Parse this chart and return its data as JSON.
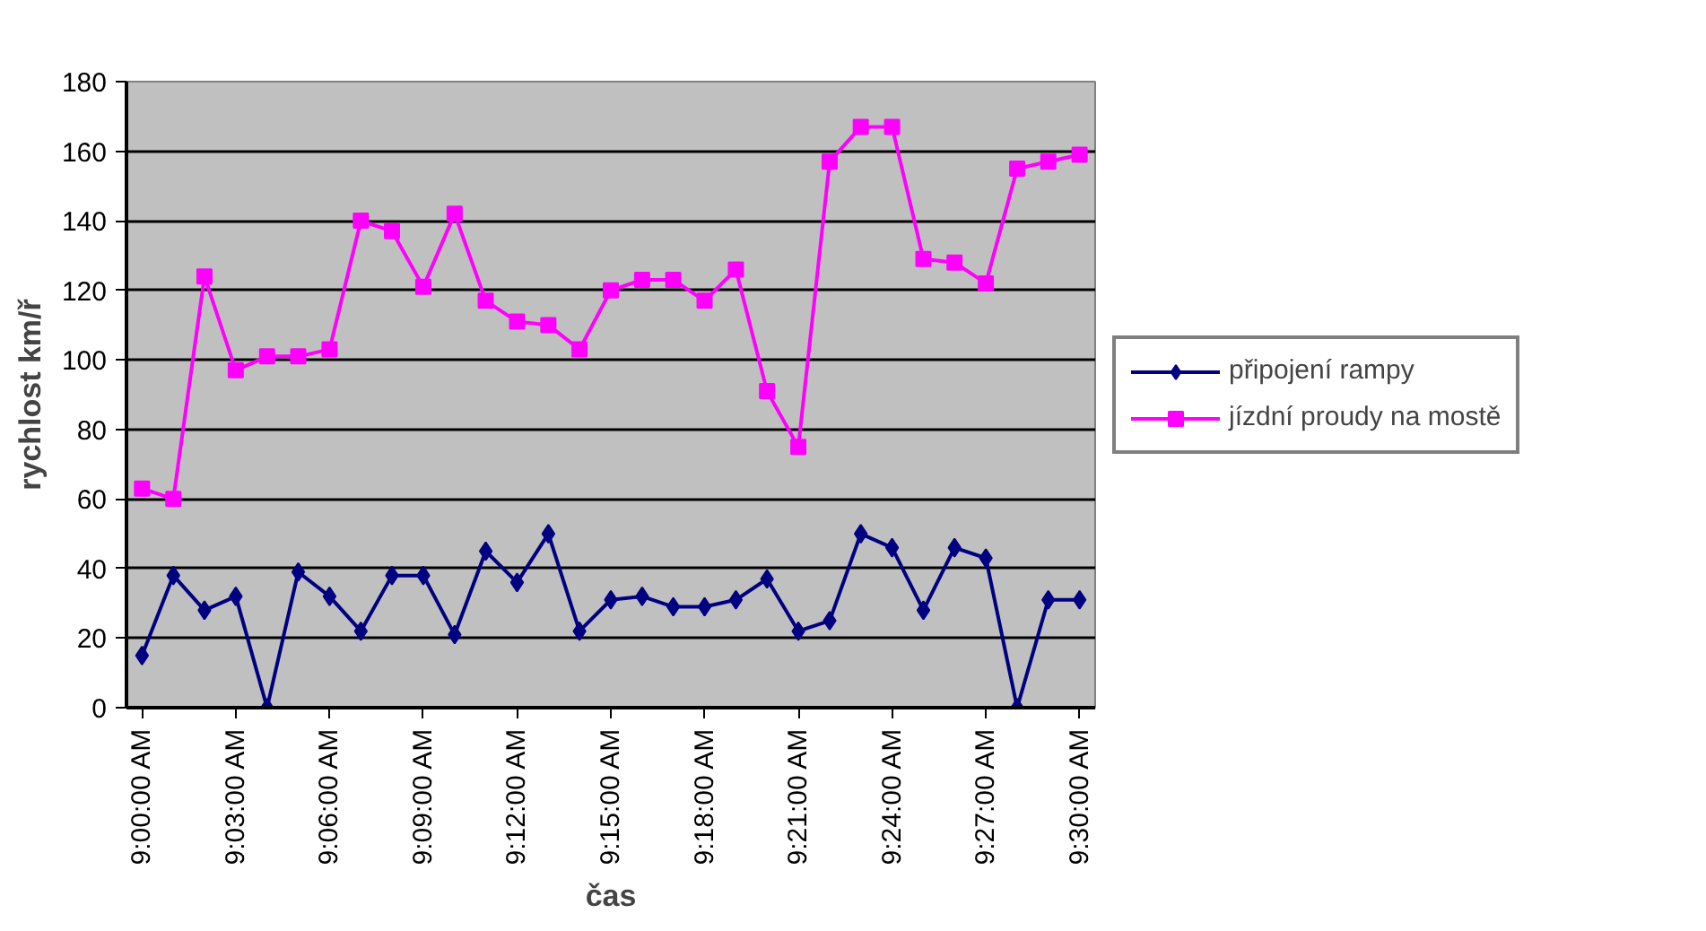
{
  "chart_data": {
    "type": "line",
    "xlabel": "čas",
    "ylabel": "rychlost km/ř",
    "x": [
      9.0,
      9.0167,
      9.0333,
      9.05,
      9.0667,
      9.0833,
      9.1,
      9.1167,
      9.1333,
      9.15,
      9.1667,
      9.1833,
      9.2,
      9.2167,
      9.2333,
      9.25,
      9.2667,
      9.2833,
      9.3,
      9.3167,
      9.3333,
      9.35,
      9.3667,
      9.3833,
      9.4,
      9.4167,
      9.4333,
      9.45,
      9.4667,
      9.4833,
      9.5
    ],
    "xlim": [
      8.9917,
      9.5083
    ],
    "xticks": [
      {
        "value": 9.0,
        "label": "9:00:00 AM"
      },
      {
        "value": 9.05,
        "label": "9:03:00 AM"
      },
      {
        "value": 9.1,
        "label": "9:06:00 AM"
      },
      {
        "value": 9.15,
        "label": "9:09:00 AM"
      },
      {
        "value": 9.2,
        "label": "9:12:00 AM"
      },
      {
        "value": 9.25,
        "label": "9:15:00 AM"
      },
      {
        "value": 9.3,
        "label": "9:18:00 AM"
      },
      {
        "value": 9.35,
        "label": "9:21:00 AM"
      },
      {
        "value": 9.4,
        "label": "9:24:00 AM"
      },
      {
        "value": 9.45,
        "label": "9:27:00 AM"
      },
      {
        "value": 9.5,
        "label": "9:30:00 AM"
      }
    ],
    "ylim": [
      0,
      180
    ],
    "yticks": [
      0,
      20,
      40,
      60,
      80,
      100,
      120,
      140,
      160,
      180
    ],
    "grid": "y",
    "legend": "right",
    "series": [
      {
        "name": "připojení rampy",
        "color": "#000080",
        "marker": "diamond",
        "values": [
          15,
          38,
          28,
          32,
          0,
          39,
          32,
          22,
          38,
          38,
          21,
          45,
          36,
          50,
          22,
          31,
          32,
          29,
          29,
          31,
          37,
          22,
          25,
          50,
          46,
          28,
          46,
          43,
          0,
          31,
          31
        ]
      },
      {
        "name": "jízdní proudy na mostě",
        "color": "#ff00ff",
        "marker": "square",
        "values": [
          63,
          60,
          124,
          97,
          101,
          101,
          103,
          140,
          137,
          121,
          142,
          117,
          111,
          110,
          103,
          120,
          123,
          123,
          117,
          126,
          91,
          75,
          157,
          167,
          167,
          129,
          128,
          122,
          155,
          157,
          159
        ]
      }
    ]
  }
}
